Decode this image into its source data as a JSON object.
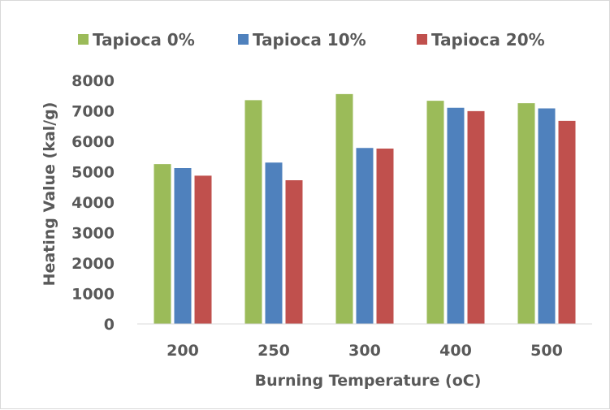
{
  "chart_data": {
    "type": "bar",
    "categories": [
      "200",
      "250",
      "300",
      "400",
      "500"
    ],
    "series": [
      {
        "name": "Tapioca 0%",
        "color": "#9bbb59",
        "values": [
          5250,
          7350,
          7550,
          7330,
          7250
        ]
      },
      {
        "name": "Tapioca 10%",
        "color": "#4f81bd",
        "values": [
          5120,
          5300,
          5780,
          7100,
          7080
        ]
      },
      {
        "name": "Tapioca 20%",
        "color": "#c0504d",
        "values": [
          4870,
          4720,
          5760,
          6990,
          6670
        ]
      }
    ],
    "title": "",
    "xlabel": "Burning Temperature (oC)",
    "ylabel": "Heating Value (kal/g)",
    "ylim": [
      0,
      8000
    ],
    "yticks": [
      0,
      1000,
      2000,
      3000,
      4000,
      5000,
      6000,
      7000,
      8000
    ],
    "grid": false,
    "legend": "top"
  }
}
